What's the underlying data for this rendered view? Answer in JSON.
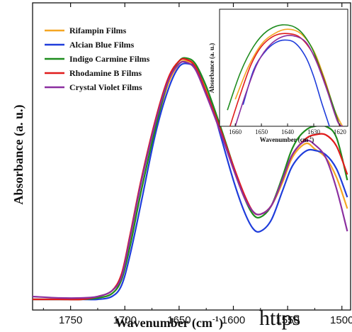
{
  "chart_data": {
    "type": "line",
    "title": "",
    "xlabel": "Wavenumber (cm",
    "xlabel_sup": "-1",
    "xlabel_close": ")",
    "ylabel": "Absorbance (a. u.)",
    "x_reversed": true,
    "xlim": [
      1785,
      1492
    ],
    "ylim": [
      0,
      1.0
    ],
    "y_ticks_shown": false,
    "xticks": [
      "1750",
      "1700",
      "1650",
      "1600",
      "1550",
      "1500"
    ],
    "legend_position": "top-left",
    "series": [
      {
        "name": "Rifampin Films",
        "color": "#f5a623",
        "points": [
          [
            1785,
            0.02
          ],
          [
            1760,
            0.02
          ],
          [
            1740,
            0.02
          ],
          [
            1725,
            0.025
          ],
          [
            1712,
            0.04
          ],
          [
            1703,
            0.09
          ],
          [
            1695,
            0.22
          ],
          [
            1685,
            0.4
          ],
          [
            1672,
            0.62
          ],
          [
            1660,
            0.78
          ],
          [
            1650,
            0.85
          ],
          [
            1643,
            0.86
          ],
          [
            1635,
            0.84
          ],
          [
            1625,
            0.76
          ],
          [
            1612,
            0.62
          ],
          [
            1600,
            0.48
          ],
          [
            1590,
            0.38
          ],
          [
            1582,
            0.33
          ],
          [
            1575,
            0.32
          ],
          [
            1565,
            0.35
          ],
          [
            1555,
            0.43
          ],
          [
            1547,
            0.51
          ],
          [
            1540,
            0.55
          ],
          [
            1532,
            0.57
          ],
          [
            1525,
            0.55
          ],
          [
            1515,
            0.52
          ],
          [
            1505,
            0.45
          ],
          [
            1495,
            0.34
          ]
        ]
      },
      {
        "name": "Alcian Blue Films",
        "color": "#1f3ddb",
        "points": [
          [
            1785,
            0.02
          ],
          [
            1760,
            0.02
          ],
          [
            1740,
            0.02
          ],
          [
            1725,
            0.02
          ],
          [
            1712,
            0.03
          ],
          [
            1703,
            0.07
          ],
          [
            1695,
            0.18
          ],
          [
            1685,
            0.36
          ],
          [
            1672,
            0.6
          ],
          [
            1660,
            0.76
          ],
          [
            1650,
            0.84
          ],
          [
            1641,
            0.85
          ],
          [
            1633,
            0.83
          ],
          [
            1623,
            0.75
          ],
          [
            1612,
            0.6
          ],
          [
            1600,
            0.44
          ],
          [
            1590,
            0.33
          ],
          [
            1582,
            0.27
          ],
          [
            1575,
            0.26
          ],
          [
            1565,
            0.3
          ],
          [
            1555,
            0.4
          ],
          [
            1547,
            0.48
          ],
          [
            1540,
            0.52
          ],
          [
            1532,
            0.545
          ],
          [
            1525,
            0.545
          ],
          [
            1515,
            0.53
          ],
          [
            1505,
            0.48
          ],
          [
            1495,
            0.38
          ]
        ]
      },
      {
        "name": "Indigo Carmine Films",
        "color": "#1e8c1e",
        "points": [
          [
            1785,
            0.02
          ],
          [
            1760,
            0.02
          ],
          [
            1740,
            0.02
          ],
          [
            1725,
            0.025
          ],
          [
            1712,
            0.04
          ],
          [
            1703,
            0.09
          ],
          [
            1695,
            0.21
          ],
          [
            1685,
            0.4
          ],
          [
            1672,
            0.62
          ],
          [
            1660,
            0.79
          ],
          [
            1650,
            0.86
          ],
          [
            1643,
            0.87
          ],
          [
            1635,
            0.85
          ],
          [
            1625,
            0.77
          ],
          [
            1612,
            0.63
          ],
          [
            1600,
            0.49
          ],
          [
            1590,
            0.38
          ],
          [
            1582,
            0.32
          ],
          [
            1575,
            0.31
          ],
          [
            1565,
            0.35
          ],
          [
            1555,
            0.45
          ],
          [
            1547,
            0.54
          ],
          [
            1540,
            0.59
          ],
          [
            1532,
            0.62
          ],
          [
            1525,
            0.63
          ],
          [
            1515,
            0.63
          ],
          [
            1505,
            0.59
          ],
          [
            1495,
            0.44
          ]
        ]
      },
      {
        "name": "Rhodamine B Films",
        "color": "#e01b1b",
        "points": [
          [
            1785,
            0.02
          ],
          [
            1760,
            0.02
          ],
          [
            1740,
            0.02
          ],
          [
            1725,
            0.03
          ],
          [
            1712,
            0.05
          ],
          [
            1703,
            0.11
          ],
          [
            1695,
            0.25
          ],
          [
            1685,
            0.44
          ],
          [
            1672,
            0.65
          ],
          [
            1660,
            0.8
          ],
          [
            1650,
            0.86
          ],
          [
            1643,
            0.865
          ],
          [
            1635,
            0.84
          ],
          [
            1625,
            0.75
          ],
          [
            1612,
            0.62
          ],
          [
            1600,
            0.49
          ],
          [
            1590,
            0.39
          ],
          [
            1582,
            0.33
          ],
          [
            1575,
            0.32
          ],
          [
            1565,
            0.35
          ],
          [
            1555,
            0.44
          ],
          [
            1547,
            0.52
          ],
          [
            1540,
            0.56
          ],
          [
            1532,
            0.59
          ],
          [
            1525,
            0.6
          ],
          [
            1515,
            0.6
          ],
          [
            1505,
            0.56
          ],
          [
            1495,
            0.46
          ]
        ]
      },
      {
        "name": "Crystal Violet Films",
        "color": "#8b2fa0",
        "points": [
          [
            1785,
            0.03
          ],
          [
            1760,
            0.025
          ],
          [
            1740,
            0.025
          ],
          [
            1725,
            0.03
          ],
          [
            1712,
            0.05
          ],
          [
            1703,
            0.1
          ],
          [
            1695,
            0.24
          ],
          [
            1685,
            0.43
          ],
          [
            1672,
            0.64
          ],
          [
            1660,
            0.79
          ],
          [
            1650,
            0.85
          ],
          [
            1643,
            0.855
          ],
          [
            1635,
            0.83
          ],
          [
            1625,
            0.74
          ],
          [
            1612,
            0.61
          ],
          [
            1600,
            0.48
          ],
          [
            1590,
            0.38
          ],
          [
            1582,
            0.33
          ],
          [
            1575,
            0.32
          ],
          [
            1565,
            0.35
          ],
          [
            1555,
            0.44
          ],
          [
            1547,
            0.52
          ],
          [
            1540,
            0.56
          ],
          [
            1532,
            0.58
          ],
          [
            1525,
            0.565
          ],
          [
            1515,
            0.52
          ],
          [
            1505,
            0.41
          ],
          [
            1495,
            0.26
          ]
        ]
      }
    ],
    "inset": {
      "xlabel": "Wavenumber (cm",
      "xlabel_sup": "-1",
      "xlabel_close": ")",
      "ylabel": "Absorbance (a. u.)",
      "xlim": [
        1666,
        1617
      ],
      "ylim": [
        0,
        1.0
      ],
      "xticks": [
        "1660",
        "1650",
        "1640",
        "1630",
        "1620"
      ],
      "series": [
        {
          "name": "Rifampin Films",
          "color": "#f5a623",
          "points": [
            [
              1660,
              0.25
            ],
            [
              1655,
              0.55
            ],
            [
              1650,
              0.76
            ],
            [
              1645,
              0.86
            ],
            [
              1640,
              0.9
            ],
            [
              1635,
              0.86
            ],
            [
              1630,
              0.7
            ],
            [
              1626,
              0.45
            ],
            [
              1622,
              0.15
            ],
            [
              1619,
              0.0
            ]
          ]
        },
        {
          "name": "Alcian Blue Films",
          "color": "#1f3ddb",
          "points": [
            [
              1657,
              0.2
            ],
            [
              1653,
              0.52
            ],
            [
              1649,
              0.68
            ],
            [
              1645,
              0.77
            ],
            [
              1641,
              0.8
            ],
            [
              1637,
              0.77
            ],
            [
              1633,
              0.64
            ],
            [
              1630,
              0.46
            ],
            [
              1627,
              0.22
            ],
            [
              1624,
              0.0
            ]
          ]
        },
        {
          "name": "Indigo Carmine Films",
          "color": "#1e8c1e",
          "points": [
            [
              1663,
              0.15
            ],
            [
              1658,
              0.5
            ],
            [
              1653,
              0.74
            ],
            [
              1648,
              0.88
            ],
            [
              1642,
              0.94
            ],
            [
              1636,
              0.9
            ],
            [
              1631,
              0.74
            ],
            [
              1627,
              0.5
            ],
            [
              1623,
              0.22
            ],
            [
              1620,
              0.0
            ]
          ]
        },
        {
          "name": "Rhodamine B Films",
          "color": "#e01b1b",
          "points": [
            [
              1662,
              0.0
            ],
            [
              1658,
              0.3
            ],
            [
              1654,
              0.57
            ],
            [
              1650,
              0.74
            ],
            [
              1645,
              0.84
            ],
            [
              1640,
              0.86
            ],
            [
              1635,
              0.82
            ],
            [
              1630,
              0.66
            ],
            [
              1626,
              0.42
            ],
            [
              1622,
              0.12
            ],
            [
              1620,
              0.0
            ]
          ]
        },
        {
          "name": "Crystal Violet Films",
          "color": "#8b2fa0",
          "points": [
            [
              1660,
              0.0
            ],
            [
              1656,
              0.3
            ],
            [
              1652,
              0.56
            ],
            [
              1648,
              0.72
            ],
            [
              1643,
              0.82
            ],
            [
              1638,
              0.84
            ],
            [
              1633,
              0.78
            ],
            [
              1629,
              0.6
            ],
            [
              1625,
              0.34
            ],
            [
              1621,
              0.05
            ],
            [
              1619,
              0.0
            ]
          ]
        }
      ]
    }
  },
  "overflow_text": "https"
}
